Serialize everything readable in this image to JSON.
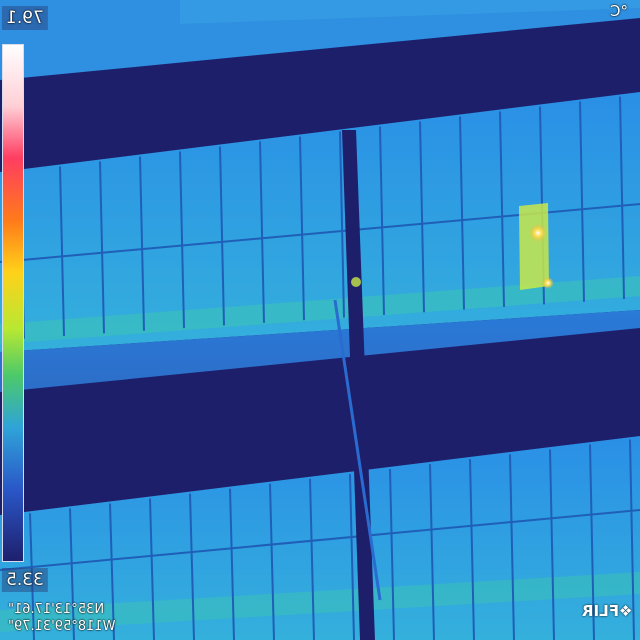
{
  "readout": {
    "max_temp": "79.1",
    "min_temp": "33.5",
    "unit": "°C"
  },
  "gps": {
    "lat": "N35°13'17.61\"",
    "lon": "W118°59'31.79\""
  },
  "brand": {
    "logo_text": "❖FLIR"
  },
  "palette": {
    "background_cold": "#1e1f6b",
    "panel_base": "#2e9ce8",
    "panel_warm": "#3fc6b8",
    "ground": "#2a78d8",
    "hotspot": "#c8e84a",
    "hotspot_core": "#ffe15a",
    "scale_stops": [
      "#ffffff",
      "#ffd2d2",
      "#ff4d6a",
      "#ff7a1a",
      "#ffd11a",
      "#b8e832",
      "#4cc96a",
      "#2fa4d8",
      "#2a57c8",
      "#1e1f6b"
    ]
  },
  "scene": {
    "orientation": "mirrored",
    "subject": "thermal-solar-array",
    "hotspot_count": 2
  }
}
